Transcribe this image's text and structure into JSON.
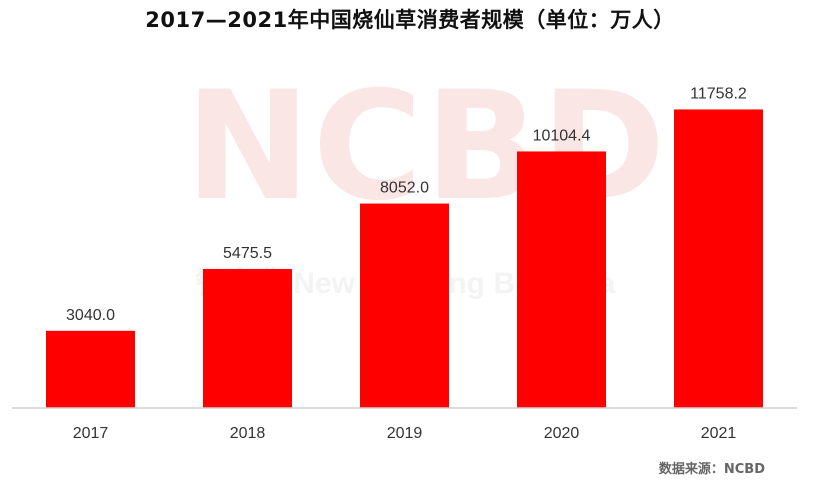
{
  "chart_data": {
    "type": "bar",
    "title": "2017—2021年中国烧仙草消费者规模（单位：万人）",
    "categories": [
      "2017",
      "2018",
      "2019",
      "2020",
      "2021"
    ],
    "values": [
      3040.0,
      5475.5,
      8052.0,
      10104.4,
      11758.2
    ],
    "data_labels": [
      "3040.0",
      "5475.5",
      "8052.0",
      "10104.4",
      "11758.2"
    ],
    "xlabel": "",
    "ylabel": "",
    "ylim": [
      0,
      12800
    ],
    "grid": false,
    "legend": "none",
    "bar_color": "#ff0000"
  },
  "source": "数据来源：NCBD",
  "watermark": {
    "logo": "NCBD",
    "text": "餐宝典 New Catering Big Data"
  }
}
